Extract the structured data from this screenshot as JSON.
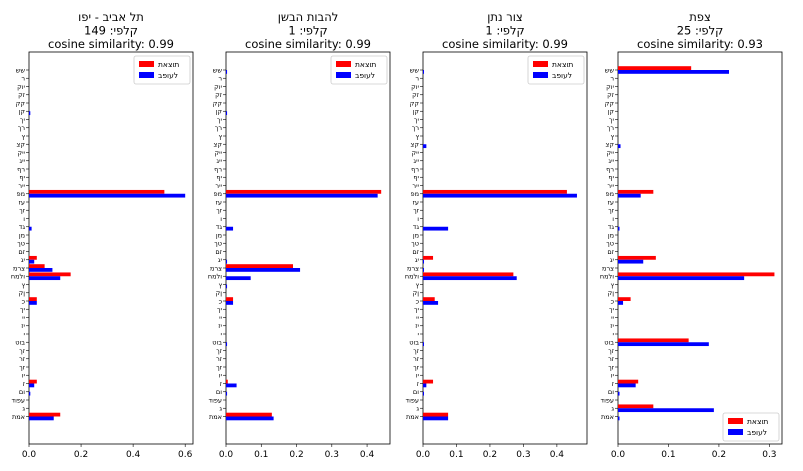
{
  "colors": {
    "actual": "#ff0000",
    "predicted": "#0000ff"
  },
  "category_labels": [
    "שש",
    "ר",
    "יוק",
    "זק",
    "קק",
    "קן",
    "יך",
    "רך",
    "ץ",
    "קצ",
    "ייק",
    "ייג",
    "רף",
    "יף",
    "ייר",
    "מפ",
    "עז",
    "זך",
    "ו",
    "גד",
    "מן",
    "טך",
    "זם",
    "יג",
    "צרמ",
    "ולמח",
    "ץ",
    "ןק",
    "כ",
    "יך",
    "יי",
    "יז",
    "י",
    "בוט",
    "זך",
    "זר",
    "זך",
    "יו",
    "ז",
    "ום",
    "עפוד",
    "ג",
    "אמת"
  ],
  "chart_data": [
    {
      "type": "bar",
      "orientation": "horizontal",
      "title": [
        "תל אביב - יפו",
        "קלפי: 149",
        "cosine similarity: 0.99"
      ],
      "series": [
        {
          "name": "תוצאת",
          "key": "actual",
          "values": [
            0,
            0,
            0,
            0,
            0,
            0,
            0,
            0,
            0,
            0,
            0,
            0,
            0,
            0,
            0,
            0.52,
            0,
            0,
            0,
            0,
            0,
            0,
            0,
            0.03,
            0.06,
            0.16,
            0,
            0,
            0.03,
            0,
            0,
            0,
            0,
            0,
            0,
            0,
            0,
            0,
            0.03,
            0,
            0,
            0,
            0.12
          ]
        },
        {
          "name": "לעופב",
          "key": "predicted",
          "values": [
            0,
            0,
            0,
            0,
            0,
            0.005,
            0,
            0,
            0,
            0,
            0,
            0,
            0,
            0,
            0,
            0.6,
            0,
            0,
            0,
            0.01,
            0,
            0,
            0,
            0.02,
            0.09,
            0.12,
            0,
            0,
            0.03,
            0,
            0,
            0,
            0,
            0,
            0,
            0,
            0,
            0,
            0.02,
            0.005,
            0,
            0,
            0.095
          ]
        }
      ],
      "xlim": [
        0,
        0.63
      ],
      "xticks": [
        0,
        0.2,
        0.4,
        0.6
      ],
      "xtick_labels": [
        "0.0",
        "0.2",
        "0.4",
        "0.6"
      ],
      "legend": "top-right"
    },
    {
      "type": "bar",
      "orientation": "horizontal",
      "title": [
        "להבות הבשן",
        "קלפי: 1",
        "cosine similarity: 0.99"
      ],
      "series": [
        {
          "name": "תוצאת",
          "key": "actual",
          "values": [
            0,
            0,
            0,
            0,
            0,
            0,
            0,
            0,
            0,
            0,
            0,
            0,
            0,
            0,
            0,
            0.44,
            0,
            0,
            0,
            0,
            0,
            0,
            0,
            0,
            0.19,
            0,
            0,
            0,
            0.02,
            0,
            0,
            0,
            0,
            0,
            0,
            0,
            0,
            0,
            0.005,
            0,
            0,
            0,
            0.13
          ]
        },
        {
          "name": "לעופב",
          "key": "predicted",
          "values": [
            0.003,
            0,
            0,
            0,
            0,
            0.003,
            0,
            0,
            0,
            0,
            0,
            0,
            0,
            0,
            0,
            0.43,
            0,
            0,
            0,
            0.02,
            0,
            0,
            0,
            0.003,
            0.21,
            0.07,
            0.003,
            0,
            0.02,
            0,
            0,
            0,
            0,
            0.003,
            0,
            0,
            0,
            0,
            0.03,
            0.003,
            0,
            0,
            0.135
          ]
        }
      ],
      "xlim": [
        0,
        0.465
      ],
      "xticks": [
        0,
        0.1,
        0.2,
        0.3,
        0.4
      ],
      "xtick_labels": [
        "0.0",
        "0.1",
        "0.2",
        "0.3",
        "0.4"
      ],
      "legend": "top-right"
    },
    {
      "type": "bar",
      "orientation": "horizontal",
      "title": [
        "צור נתן",
        "קלפי: 1",
        "cosine similarity: 0.99"
      ],
      "series": [
        {
          "name": "תוצאת",
          "key": "actual",
          "values": [
            0,
            0,
            0,
            0,
            0,
            0,
            0,
            0,
            0,
            0,
            0,
            0,
            0,
            0,
            0,
            0.43,
            0,
            0,
            0,
            0,
            0,
            0,
            0,
            0.03,
            0,
            0.27,
            0,
            0,
            0.035,
            0,
            0,
            0,
            0,
            0,
            0,
            0,
            0,
            0,
            0.03,
            0,
            0,
            0,
            0.075
          ]
        },
        {
          "name": "לעופב",
          "key": "predicted",
          "values": [
            0.003,
            0,
            0,
            0,
            0,
            0,
            0,
            0,
            0,
            0.01,
            0,
            0,
            0,
            0,
            0,
            0.46,
            0,
            0,
            0,
            0.075,
            0,
            0,
            0,
            0.003,
            0.003,
            0.28,
            0,
            0,
            0.045,
            0,
            0,
            0,
            0,
            0.003,
            0,
            0,
            0,
            0,
            0.01,
            0.003,
            0,
            0,
            0.075
          ]
        }
      ],
      "xlim": [
        0,
        0.49
      ],
      "xticks": [
        0,
        0.1,
        0.2,
        0.3,
        0.4
      ],
      "xtick_labels": [
        "0.0",
        "0.1",
        "0.2",
        "0.3",
        "0.4"
      ],
      "legend": "top-right"
    },
    {
      "type": "bar",
      "orientation": "horizontal",
      "title": [
        "צפת",
        "קלפי: 25",
        "cosine similarity: 0.93"
      ],
      "series": [
        {
          "name": "תוצאת",
          "key": "actual",
          "values": [
            0.145,
            0,
            0,
            0,
            0,
            0,
            0,
            0,
            0,
            0,
            0,
            0,
            0,
            0,
            0,
            0.07,
            0,
            0,
            0,
            0,
            0,
            0,
            0,
            0.075,
            0,
            0.31,
            0,
            0,
            0.025,
            0,
            0,
            0,
            0,
            0.14,
            0,
            0,
            0,
            0,
            0.04,
            0,
            0,
            0.07,
            0
          ]
        },
        {
          "name": "לעופב",
          "key": "predicted",
          "values": [
            0.22,
            0,
            0,
            0,
            0,
            0,
            0,
            0,
            0,
            0.005,
            0,
            0,
            0,
            0,
            0,
            0.045,
            0,
            0,
            0,
            0.003,
            0,
            0,
            0,
            0.05,
            0,
            0.25,
            0,
            0,
            0.01,
            0,
            0,
            0,
            0,
            0.18,
            0,
            0,
            0,
            0,
            0.035,
            0.003,
            0,
            0.19,
            0.003
          ]
        }
      ],
      "xlim": [
        0,
        0.325
      ],
      "xticks": [
        0,
        0.1,
        0.2,
        0.3
      ],
      "xtick_labels": [
        "0.0",
        "0.1",
        "0.2",
        "0.3"
      ],
      "legend": "bottom-right"
    }
  ]
}
